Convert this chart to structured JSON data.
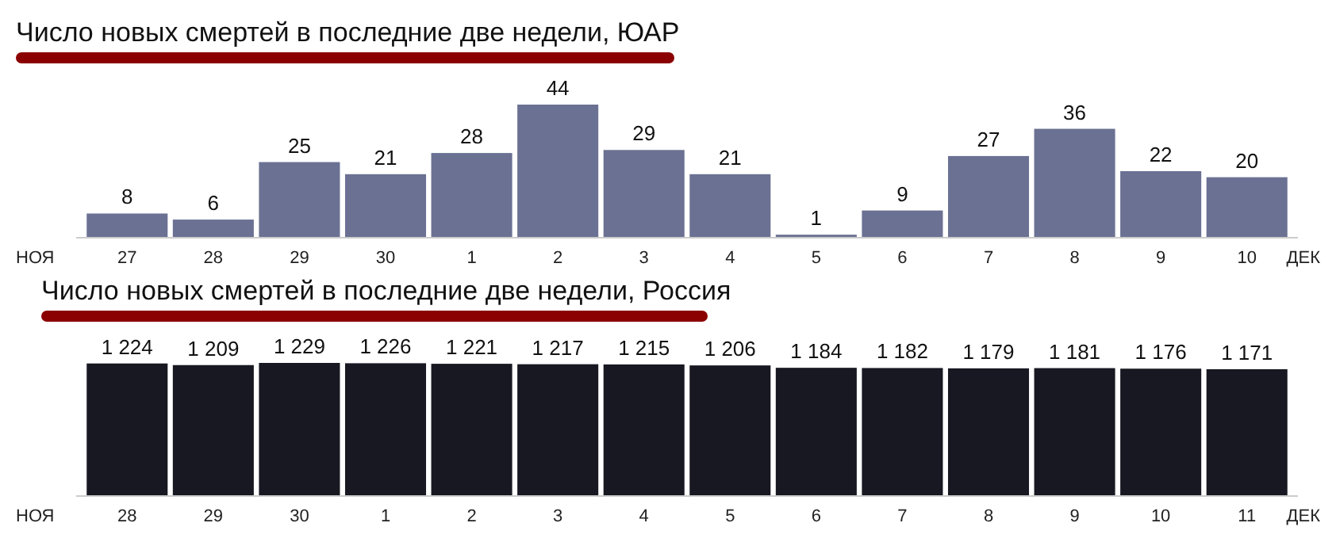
{
  "chart_data": [
    {
      "type": "bar",
      "title": "Число новых смертей в последние две недели, ЮАР",
      "categories": [
        "27",
        "28",
        "29",
        "30",
        "1",
        "2",
        "3",
        "4",
        "5",
        "6",
        "7",
        "8",
        "9",
        "10"
      ],
      "values": [
        8,
        6,
        25,
        21,
        28,
        44,
        29,
        21,
        1,
        9,
        27,
        36,
        22,
        20
      ],
      "color": "#6b7193",
      "data_labels": true,
      "annotations": [
        "НОЯ",
        "ДЕК"
      ]
    },
    {
      "type": "bar",
      "title": "Число новых смертей в последние две недели, Россия",
      "categories": [
        "28",
        "29",
        "30",
        "1",
        "2",
        "3",
        "4",
        "5",
        "6",
        "7",
        "8",
        "9",
        "10",
        "11"
      ],
      "values": [
        1224,
        1209,
        1229,
        1226,
        1221,
        1217,
        1215,
        1206,
        1184,
        1182,
        1179,
        1181,
        1176,
        1171
      ],
      "value_labels": [
        "1 224",
        "1 209",
        "1 229",
        "1 226",
        "1 221",
        "1 217",
        "1 215",
        "1 206",
        "1 184",
        "1 182",
        "1 179",
        "1 181",
        "1 176",
        "1 171"
      ],
      "color": "#181822",
      "annotations": [
        "НОЯ",
        "ДЕК"
      ]
    }
  ]
}
